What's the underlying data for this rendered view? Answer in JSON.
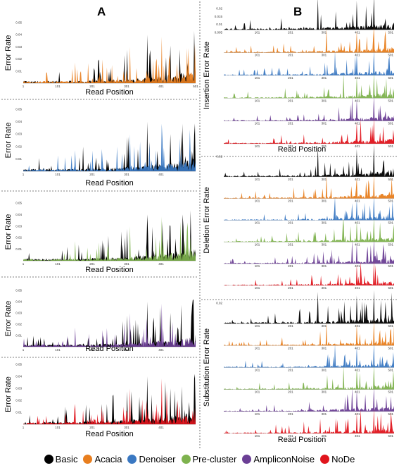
{
  "panel_labels": {
    "a": "A",
    "b": "B"
  },
  "legend": [
    {
      "name": "Basic",
      "color": "#000000"
    },
    {
      "name": "Acacia",
      "color": "#e87e1e"
    },
    {
      "name": "Denoiser",
      "color": "#3a78c2"
    },
    {
      "name": "Pre-cluster",
      "color": "#7eb24e"
    },
    {
      "name": "AmpliconNoise",
      "color": "#6b3f95"
    },
    {
      "name": "NoDe",
      "color": "#e0141c"
    }
  ],
  "chart_data": [
    {
      "type": "area",
      "panel": "A",
      "series": [
        "Basic",
        "Acacia"
      ],
      "ylabel": "Error Rate",
      "xlabel": "Read Position",
      "ylim": [
        0,
        0.05
      ],
      "yticks": [
        "0.01",
        "0.02",
        "0.03",
        "0.04",
        "0.05"
      ],
      "xticks": [
        "1",
        "101",
        "201",
        "301",
        "401",
        "501"
      ]
    },
    {
      "type": "area",
      "panel": "A",
      "series": [
        "Basic",
        "Denoiser"
      ],
      "ylabel": "Error Rate",
      "xlabel": "Read Position",
      "ylim": [
        0,
        0.05
      ],
      "yticks": [
        "0.01",
        "0.02",
        "0.03",
        "0.04",
        "0.05"
      ],
      "xticks": [
        "1",
        "101",
        "201",
        "301",
        "401"
      ]
    },
    {
      "type": "area",
      "panel": "A",
      "series": [
        "Basic",
        "Pre-cluster"
      ],
      "ylabel": "Error Rate",
      "xlabel": "Read Position",
      "ylim": [
        0,
        0.05
      ],
      "yticks": [
        "0.01",
        "0.02",
        "0.03",
        "0.04",
        "0.05"
      ],
      "xticks": [
        "1",
        "101",
        "201",
        "301",
        "401"
      ]
    },
    {
      "type": "area",
      "panel": "A",
      "series": [
        "Basic",
        "AmpliconNoise"
      ],
      "ylabel": "Error Rate",
      "xlabel": "Read Position",
      "ylim": [
        0,
        0.05
      ],
      "yticks": [
        "0.01",
        "0.02",
        "0.03",
        "0.04",
        "0.05"
      ],
      "xticks": [
        "1",
        "101",
        "201",
        "301",
        "401"
      ]
    },
    {
      "type": "area",
      "panel": "A",
      "series": [
        "Basic",
        "NoDe"
      ],
      "ylabel": "Error Rate",
      "xlabel": "Read Position",
      "ylim": [
        0,
        0.05
      ],
      "yticks": [
        "0.01",
        "0.02",
        "0.03",
        "0.04",
        "0.05"
      ],
      "xticks": [
        "1",
        "101",
        "201",
        "301",
        "401"
      ]
    },
    {
      "type": "area",
      "panel": "B",
      "ylabel": "Insertion Error Rate",
      "xlabel": "Read Position",
      "ylim": [
        0,
        0.02
      ],
      "yticks": [
        "0.005",
        "0.01",
        "0.015",
        "0.02"
      ],
      "xticks": [
        "101",
        "201",
        "301",
        "401",
        "501"
      ],
      "series": [
        "Basic",
        "Acacia",
        "Denoiser",
        "Pre-cluster",
        "AmpliconNoise",
        "NoDe"
      ]
    },
    {
      "type": "area",
      "panel": "B",
      "ylabel": "Deletion Error Rate",
      "xlabel": "",
      "ylim": [
        0,
        0.02
      ],
      "yticks": [
        "0.02"
      ],
      "xticks": [
        "101",
        "201",
        "301",
        "401",
        "501"
      ],
      "series": [
        "Basic",
        "Acacia",
        "Denoiser",
        "Pre-cluster",
        "AmpliconNoise",
        "NoDe"
      ]
    },
    {
      "type": "area",
      "panel": "B",
      "ylabel": "Substitution Error Rate",
      "xlabel": "Read Position",
      "ylim": [
        0,
        0.02
      ],
      "yticks": [
        "0.02"
      ],
      "xticks": [
        "101",
        "201",
        "301",
        "401",
        "501"
      ],
      "series": [
        "Basic",
        "Acacia",
        "Denoiser",
        "Pre-cluster",
        "AmpliconNoise",
        "NoDe"
      ]
    }
  ]
}
